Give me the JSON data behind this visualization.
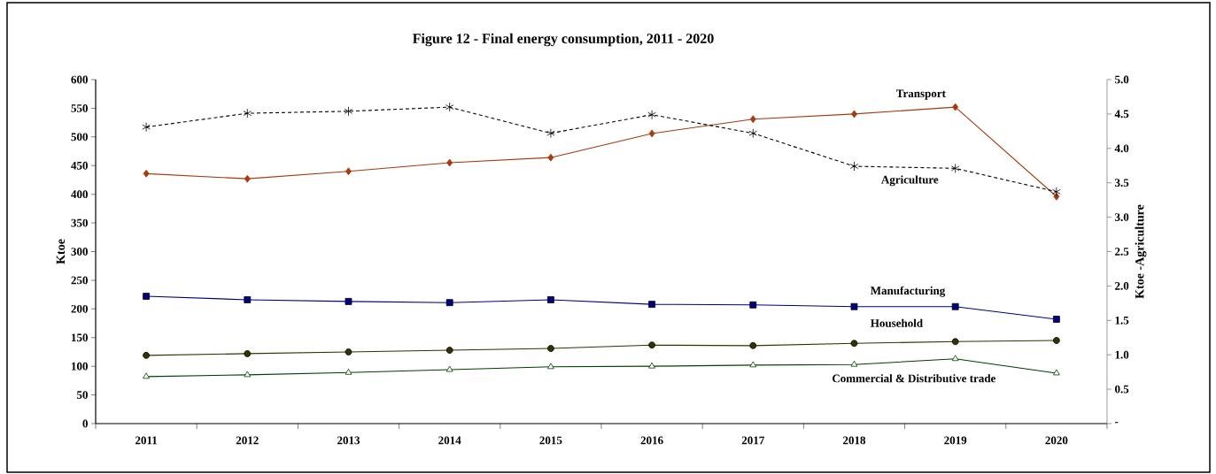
{
  "chart_data": {
    "type": "line",
    "title": "Figure 12 - Final energy consumption, 2011 - 2020",
    "ylabel": "Ktoe",
    "y2label": "Ktoe -Agriculture",
    "categories": [
      "2011",
      "2012",
      "2013",
      "2014",
      "2015",
      "2016",
      "2017",
      "2018",
      "2019",
      "2020"
    ],
    "ylim": [
      0,
      600
    ],
    "yticks": [
      0,
      50,
      100,
      150,
      200,
      250,
      300,
      350,
      400,
      450,
      500,
      550,
      600
    ],
    "y2lim": [
      0,
      5
    ],
    "y2ticks": [
      {
        "value": 0,
        "label": "-"
      },
      0.5,
      {
        "value": 1,
        "label": "1.0"
      },
      1.5,
      {
        "value": 2,
        "label": "2.0"
      },
      2.5,
      {
        "value": 3,
        "label": "3.0"
      },
      3.5,
      {
        "value": 4,
        "label": "4.0"
      },
      4.5,
      {
        "value": 5,
        "label": "5.0"
      }
    ],
    "series": [
      {
        "name": "Transport",
        "color": "#a53a0c",
        "marker": "diamond",
        "line_style": "solid",
        "values": [
          436,
          427,
          440,
          455,
          464,
          506,
          531,
          540,
          552,
          396
        ]
      },
      {
        "name": "Agriculture",
        "color": "#000000",
        "marker": "cross",
        "line_style": "dashed",
        "axis": "y2",
        "values": [
          4.31,
          4.51,
          4.54,
          4.6,
          4.22,
          4.49,
          4.22,
          3.74,
          3.71,
          3.37
        ]
      },
      {
        "name": "Manufacturing",
        "color": "#000080",
        "marker": "square",
        "line_style": "solid",
        "values": [
          222,
          216,
          213,
          211,
          216,
          208,
          207,
          204,
          204,
          182
        ]
      },
      {
        "name": "Household",
        "color": "#333300",
        "marker": "circle",
        "line_style": "solid",
        "values": [
          119,
          122,
          125,
          128,
          131,
          137,
          136,
          140,
          143,
          145
        ]
      },
      {
        "name": "Commercial & Distributive trade",
        "color": "#004000",
        "marker": "triangle",
        "line_style": "solid",
        "values": [
          82,
          85,
          89,
          94,
          99,
          100,
          102,
          103,
          113,
          88
        ]
      }
    ]
  }
}
